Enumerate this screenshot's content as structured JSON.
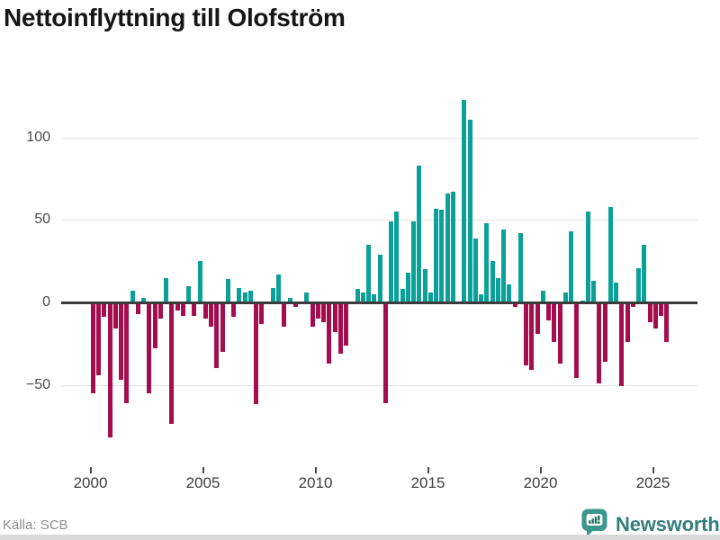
{
  "title": "Nettoinflyttning till Olofström",
  "source": "Källa: SCB",
  "brand": {
    "name": "Newsworthy",
    "icon": "bar-chart-speech-bubble",
    "bubble_color": "#3b978e",
    "icon_glyph_color": "#1f6f69",
    "text_color": "#337e7b"
  },
  "colors": {
    "positive_bar": "#0ca09a",
    "negative_bar": "#a50d4d",
    "zero_line": "#3b3b3b",
    "gridline": "#e1e1e1",
    "bottom_strip": "#d9d9d9"
  },
  "chart_data": {
    "type": "bar",
    "title": "Nettoinflyttning till Olofström",
    "frequency": "quarterly",
    "x_start": "2000 Q1",
    "x_end": "2025 Q3",
    "x_tick_years": [
      2000,
      2005,
      2010,
      2015,
      2020,
      2025
    ],
    "x_tick_labels": [
      "2000",
      "2005",
      "2010",
      "2015",
      "2020",
      "2025"
    ],
    "y_ticks": [
      100,
      50,
      0,
      -50
    ],
    "y_tick_labels": [
      "100",
      "50",
      "0",
      "−50"
    ],
    "ylim": [
      -90,
      135
    ],
    "grid": "horizontal",
    "legend": "none",
    "values": [
      -55,
      -44,
      -9,
      -82,
      -16,
      -47,
      -61,
      7,
      -7,
      3,
      -55,
      -28,
      -10,
      15,
      -74,
      -5,
      -8,
      10,
      -8,
      25,
      -10,
      -15,
      -40,
      -30,
      14,
      -9,
      9,
      6,
      7,
      -62,
      -13,
      0,
      9,
      17,
      -15,
      3,
      -3,
      0,
      6,
      -15,
      -10,
      -12,
      -37,
      -18,
      -31,
      -26,
      0,
      8,
      6,
      35,
      5,
      29,
      -61,
      49,
      55,
      8,
      18,
      49,
      83,
      20,
      6,
      57,
      56,
      66,
      67,
      0,
      123,
      111,
      39,
      5,
      48,
      25,
      15,
      44,
      11,
      -3,
      42,
      -38,
      -41,
      -19,
      7,
      -11,
      -24,
      -37,
      6,
      43,
      -46,
      1,
      55,
      13,
      -49,
      -36,
      58,
      12,
      -51,
      -24,
      -3,
      21,
      35,
      -12,
      -16,
      -8,
      -24
    ]
  }
}
